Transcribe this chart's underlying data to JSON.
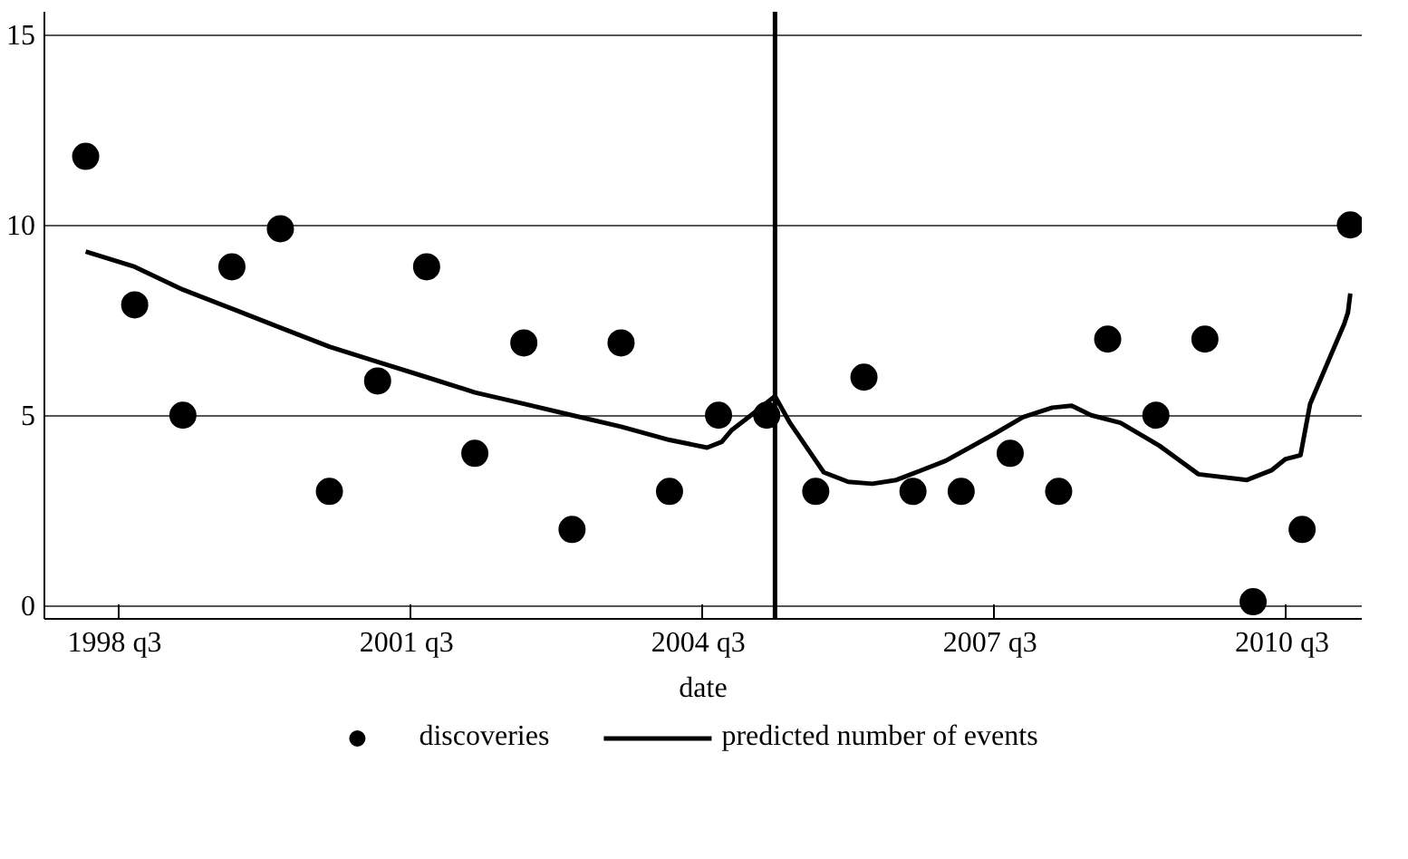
{
  "chart_data": {
    "type": "scatter",
    "xlabel": "date",
    "xlim": [
      "1997-09-27",
      "2011-04-13"
    ],
    "ylim": [
      -0.35,
      15.6
    ],
    "xticks": [
      {
        "value": "1998-07",
        "label": "1998  q3"
      },
      {
        "value": "2001-07",
        "label": "2001  q3"
      },
      {
        "value": "2004-07",
        "label": "2004  q3"
      },
      {
        "value": "2007-07",
        "label": "2007  q3"
      },
      {
        "value": "2010-07",
        "label": "2010  q3"
      }
    ],
    "yticks": [
      0,
      5,
      10,
      15
    ],
    "grid": "y",
    "legend": "bottom",
    "ref_lines": [
      {
        "axis": "x",
        "value": "2005-04",
        "color": "#000000"
      }
    ],
    "series": [
      {
        "name": "discoveries",
        "marker": "circle",
        "color": "#000000",
        "x": [
          "1998-03",
          "1998-09",
          "1999-03",
          "1999-09",
          "2000-03",
          "2000-09",
          "2001-03",
          "2001-09",
          "2002-03",
          "2002-09",
          "2003-03",
          "2003-09",
          "2004-03",
          "2004-09",
          "2005-03",
          "2005-09",
          "2006-03",
          "2006-09",
          "2007-03",
          "2007-09",
          "2008-03",
          "2008-09",
          "2009-03",
          "2009-09",
          "2010-03",
          "2010-09",
          "2011-03"
        ],
        "values": [
          11.8,
          7.9,
          5,
          8.9,
          9.9,
          3,
          5.9,
          8.9,
          4,
          6.9,
          2,
          6.9,
          3,
          5,
          5,
          3,
          6,
          3,
          3,
          4,
          3,
          7,
          5,
          7,
          0.1,
          2,
          10
        ]
      },
      {
        "name": "predicted number of events",
        "type": "line",
        "color": "#000000",
        "line_style": "solid",
        "x": [
          "1998-03",
          "1998-09",
          "1999-03",
          "1999-09",
          "2000-03",
          "2000-09",
          "2001-03",
          "2001-09",
          "2002-03",
          "2002-09",
          "2003-03",
          "2003-09",
          "2004-03",
          "2004-07-20",
          "2004-09-13",
          "2004-10-19",
          "2005-01-01",
          "2005-04-01",
          "2005-05-27",
          "2005-10-01",
          "2006-01-01",
          "2006-04-01",
          "2006-07-01",
          "2007-01-01",
          "2007-07-01",
          "2007-10-19",
          "2008-02-06",
          "2008-04-19",
          "2008-07-01",
          "2008-10-19",
          "2009-03-14",
          "2009-08-08",
          "2010-02-06",
          "2010-05-08",
          "2010-07-01",
          "2010-08-26",
          "2010-10-01",
          "2010-12-13",
          "2011-02-06",
          "2011-02-20",
          "2011-03-01"
        ],
        "values": [
          9.3,
          8.9,
          8.3,
          7.8,
          7.3,
          6.8,
          6.4,
          6.0,
          5.6,
          5.3,
          5.0,
          4.7,
          4.35,
          4.15,
          4.3,
          4.6,
          5.0,
          5.5,
          4.8,
          3.5,
          3.25,
          3.2,
          3.3,
          3.8,
          4.5,
          4.95,
          5.2,
          5.25,
          5.0,
          4.8,
          4.2,
          3.45,
          3.3,
          3.55,
          3.85,
          3.95,
          5.3,
          6.5,
          7.4,
          7.7,
          8.2
        ]
      }
    ]
  }
}
